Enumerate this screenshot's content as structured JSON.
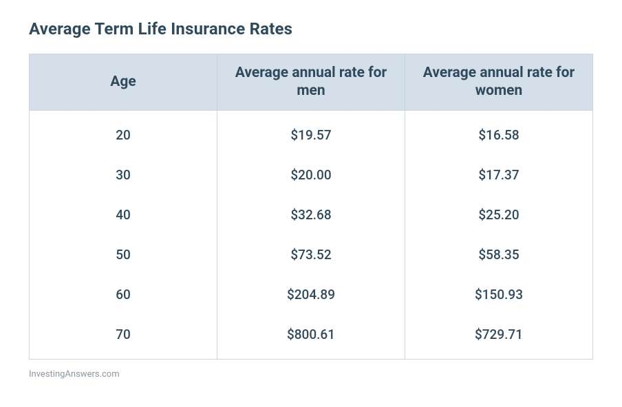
{
  "title": "Average Term Life Insurance Rates",
  "attribution": "InvestingAnswers.com",
  "table": {
    "type": "table",
    "header_bg": "#d4dfe9",
    "border_color": "#c9d6e0",
    "text_color": "#2e4a5c",
    "header_fontsize": 21,
    "cell_fontsize": 19,
    "columns": [
      {
        "label": "Age"
      },
      {
        "label": "Average annual rate for men"
      },
      {
        "label": "Average annual rate for women"
      }
    ],
    "rows": [
      {
        "age": "20",
        "men": "$19.57",
        "women": "$16.58"
      },
      {
        "age": "30",
        "men": "$20.00",
        "women": "$17.37"
      },
      {
        "age": "40",
        "men": "$32.68",
        "women": "$25.20"
      },
      {
        "age": "50",
        "men": "$73.52",
        "women": "$58.35"
      },
      {
        "age": "60",
        "men": "$204.89",
        "women": "$150.93"
      },
      {
        "age": "70",
        "men": "$800.61",
        "women": "$729.71"
      }
    ]
  }
}
